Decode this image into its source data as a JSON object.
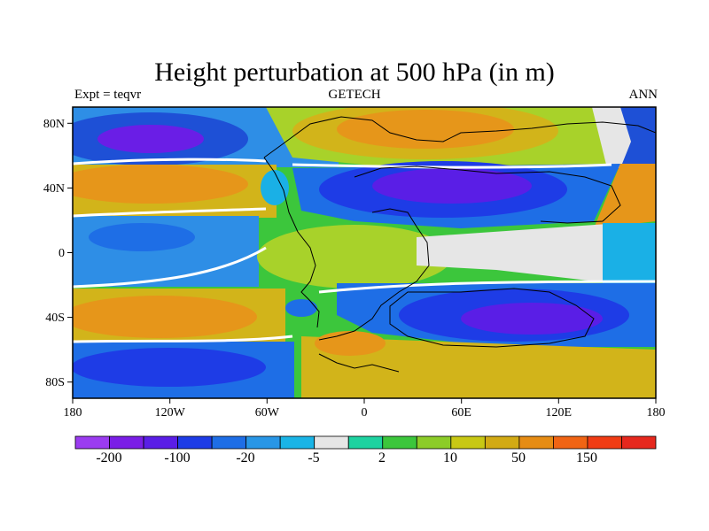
{
  "header": {
    "title": "Height perturbation at 500 hPa (in m)",
    "left": "Expt = teqvr",
    "center": "GETECH",
    "right": "ANN"
  },
  "map": {
    "lon_ticks": [
      "180",
      "120W",
      "60W",
      "0",
      "60E",
      "120E",
      "180"
    ],
    "lat_ticks": [
      "80N",
      "40N",
      "0",
      "40S",
      "80S"
    ],
    "colors": {
      "ocean_low": "#1e50d6",
      "mid_blue": "#2e8ee6",
      "light_blue": "#1ab0e6",
      "near_zero": "#e6e6e6",
      "green": "#3cc63c",
      "yellow_green": "#a8d22a",
      "gold": "#d2b41a",
      "orange": "#e6961a",
      "purple": "#6a1ee6"
    }
  },
  "colorbar": {
    "colors": [
      "#9b3cf0",
      "#7a1ee6",
      "#5a1ee6",
      "#1e3ce6",
      "#1e6ee6",
      "#2896e6",
      "#1ab4e6",
      "#e6e6e6",
      "#1ed2a0",
      "#3cc63c",
      "#8ccc28",
      "#c8c814",
      "#d2aa14",
      "#e68c14",
      "#f06414",
      "#f03c14",
      "#e6281e"
    ],
    "labels": [
      "-200",
      "-100",
      "-20",
      "-5",
      "2",
      "10",
      "50",
      "150"
    ]
  }
}
